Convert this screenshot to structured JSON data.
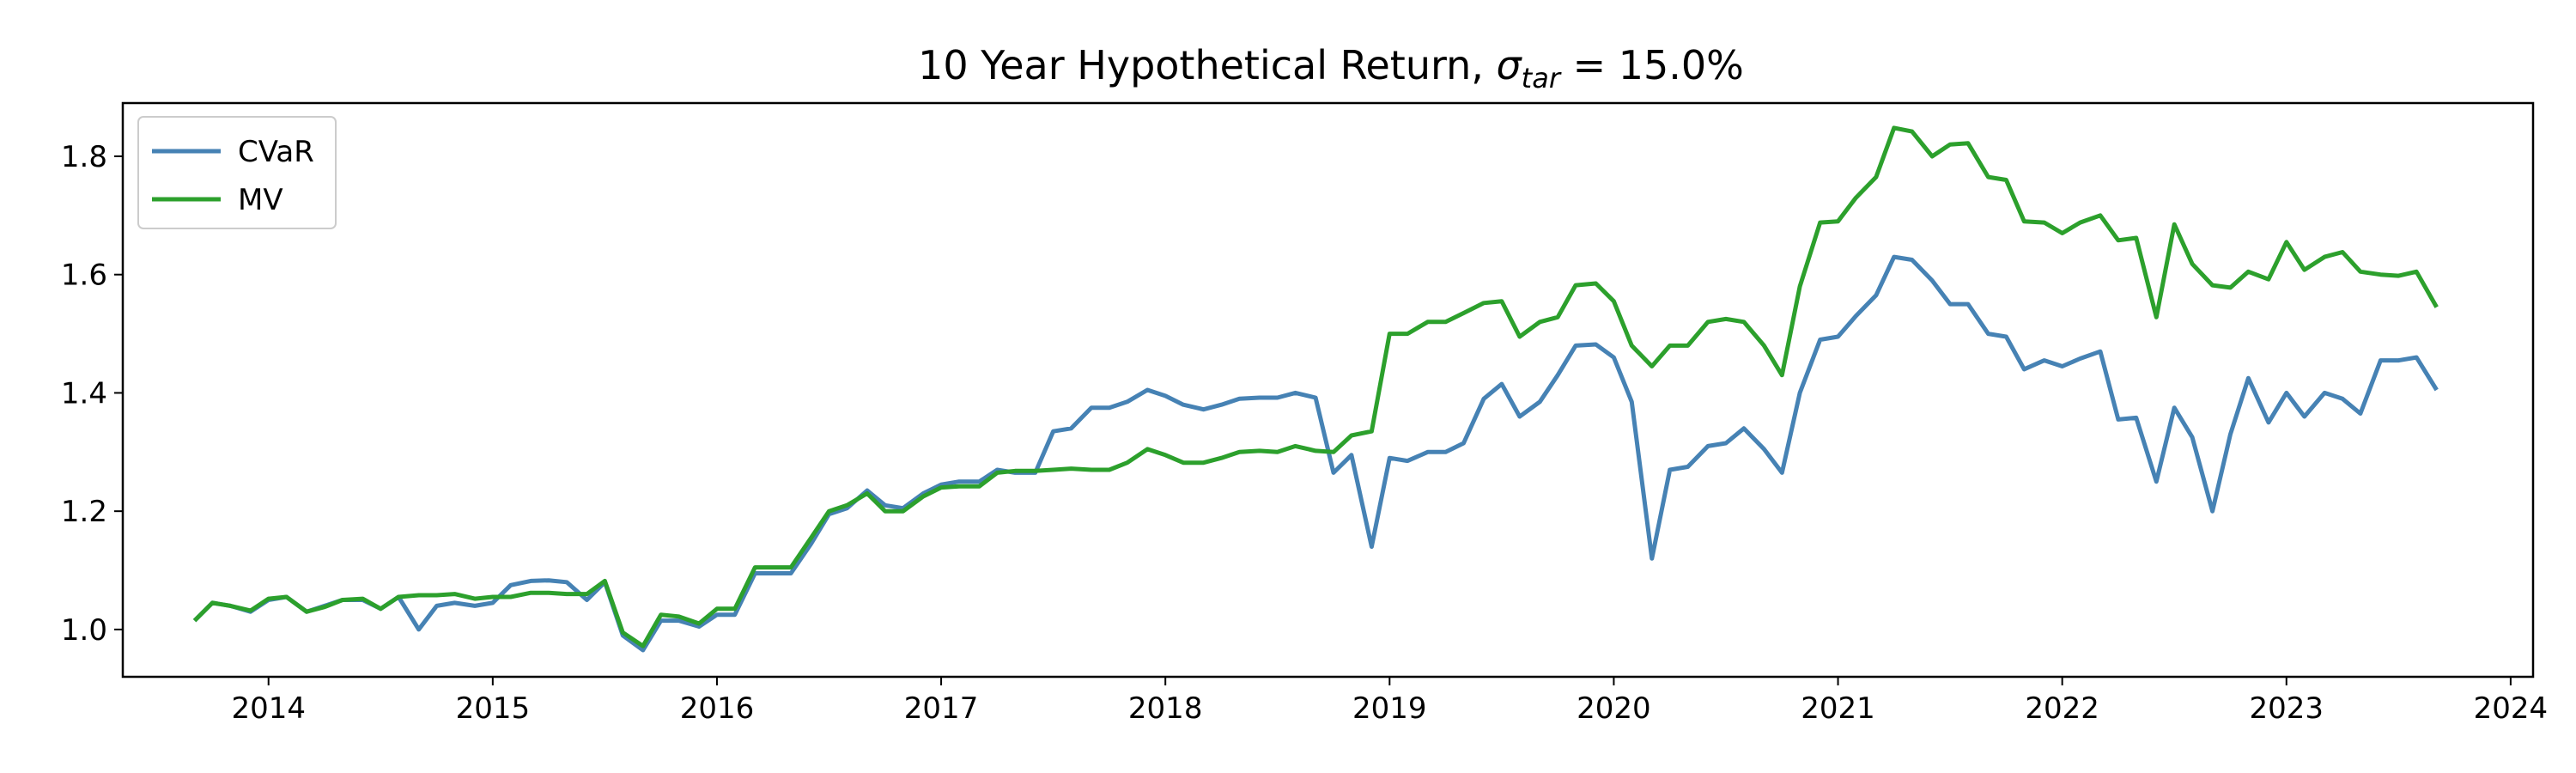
{
  "chart_data": {
    "type": "line",
    "title": {
      "prefix": "10 Year Hypothetical Return, ",
      "sigma": "σ",
      "subscript": "tar",
      "suffix": " = 15.0%"
    },
    "xlabel": "",
    "ylabel": "",
    "xlim": [
      2013.35,
      2024.1
    ],
    "ylim": [
      0.92,
      1.89
    ],
    "x_ticks": [
      "2014",
      "2015",
      "2016",
      "2017",
      "2018",
      "2019",
      "2020",
      "2021",
      "2022",
      "2023",
      "2024"
    ],
    "y_ticks": [
      "1.0",
      "1.2",
      "1.4",
      "1.6",
      "1.8"
    ],
    "grid": false,
    "legend": {
      "position": "top-left"
    },
    "x": [
      2013.67,
      2013.75,
      2013.83,
      2013.92,
      2014.0,
      2014.08,
      2014.17,
      2014.25,
      2014.33,
      2014.42,
      2014.5,
      2014.58,
      2014.67,
      2014.75,
      2014.83,
      2014.92,
      2015.0,
      2015.08,
      2015.17,
      2015.25,
      2015.33,
      2015.42,
      2015.5,
      2015.58,
      2015.67,
      2015.75,
      2015.83,
      2015.92,
      2016.0,
      2016.08,
      2016.17,
      2016.25,
      2016.33,
      2016.42,
      2016.5,
      2016.58,
      2016.67,
      2016.75,
      2016.83,
      2016.92,
      2017.0,
      2017.08,
      2017.17,
      2017.25,
      2017.33,
      2017.42,
      2017.5,
      2017.58,
      2017.67,
      2017.75,
      2017.83,
      2017.92,
      2018.0,
      2018.08,
      2018.17,
      2018.25,
      2018.33,
      2018.42,
      2018.5,
      2018.58,
      2018.67,
      2018.75,
      2018.83,
      2018.92,
      2019.0,
      2019.08,
      2019.17,
      2019.25,
      2019.33,
      2019.42,
      2019.5,
      2019.58,
      2019.67,
      2019.75,
      2019.83,
      2019.92,
      2020.0,
      2020.08,
      2020.17,
      2020.25,
      2020.33,
      2020.42,
      2020.5,
      2020.58,
      2020.67,
      2020.75,
      2020.83,
      2020.92,
      2021.0,
      2021.08,
      2021.17,
      2021.25,
      2021.33,
      2021.42,
      2021.5,
      2021.58,
      2021.67,
      2021.75,
      2021.83,
      2021.92,
      2022.0,
      2022.08,
      2022.17,
      2022.25,
      2022.33,
      2022.42,
      2022.5,
      2022.58,
      2022.67,
      2022.75,
      2022.83,
      2022.92,
      2023.0,
      2023.08,
      2023.17,
      2023.25,
      2023.33,
      2023.42,
      2023.5,
      2023.58,
      2023.67
    ],
    "series": [
      {
        "name": "CVaR",
        "color": "#4682b4",
        "values": [
          1.015,
          1.045,
          1.04,
          1.03,
          1.05,
          1.055,
          1.03,
          1.04,
          1.05,
          1.05,
          1.035,
          1.055,
          1.0,
          1.04,
          1.045,
          1.04,
          1.045,
          1.075,
          1.082,
          1.083,
          1.08,
          1.05,
          1.08,
          0.99,
          0.965,
          1.015,
          1.015,
          1.005,
          1.025,
          1.025,
          1.095,
          1.095,
          1.095,
          1.145,
          1.195,
          1.205,
          1.235,
          1.21,
          1.205,
          1.23,
          1.245,
          1.25,
          1.25,
          1.27,
          1.265,
          1.265,
          1.335,
          1.34,
          1.375,
          1.375,
          1.385,
          1.405,
          1.395,
          1.38,
          1.372,
          1.38,
          1.39,
          1.392,
          1.392,
          1.4,
          1.392,
          1.265,
          1.295,
          1.14,
          1.29,
          1.285,
          1.3,
          1.3,
          1.315,
          1.39,
          1.415,
          1.36,
          1.385,
          1.43,
          1.48,
          1.482,
          1.46,
          1.385,
          1.12,
          1.27,
          1.275,
          1.31,
          1.315,
          1.34,
          1.305,
          1.265,
          1.4,
          1.49,
          1.495,
          1.53,
          1.565,
          1.63,
          1.625,
          1.59,
          1.55,
          1.55,
          1.5,
          1.495,
          1.44,
          1.455,
          1.445,
          1.458,
          1.47,
          1.355,
          1.358,
          1.25,
          1.375,
          1.325,
          1.2,
          1.33,
          1.425,
          1.35,
          1.4,
          1.36,
          1.4,
          1.39,
          1.365,
          1.455,
          1.455,
          1.46,
          1.405
        ]
      },
      {
        "name": "MV",
        "color": "#2ca02c",
        "values": [
          1.015,
          1.045,
          1.04,
          1.032,
          1.052,
          1.055,
          1.03,
          1.038,
          1.05,
          1.052,
          1.035,
          1.055,
          1.058,
          1.058,
          1.06,
          1.052,
          1.055,
          1.055,
          1.062,
          1.062,
          1.06,
          1.06,
          1.082,
          0.995,
          0.972,
          1.025,
          1.022,
          1.01,
          1.035,
          1.035,
          1.105,
          1.105,
          1.105,
          1.155,
          1.2,
          1.21,
          1.23,
          1.2,
          1.2,
          1.225,
          1.24,
          1.242,
          1.242,
          1.265,
          1.268,
          1.268,
          1.27,
          1.272,
          1.27,
          1.27,
          1.282,
          1.305,
          1.295,
          1.282,
          1.282,
          1.29,
          1.3,
          1.302,
          1.3,
          1.31,
          1.302,
          1.3,
          1.328,
          1.335,
          1.5,
          1.5,
          1.52,
          1.52,
          1.535,
          1.552,
          1.555,
          1.495,
          1.52,
          1.528,
          1.582,
          1.585,
          1.555,
          1.48,
          1.445,
          1.48,
          1.48,
          1.52,
          1.525,
          1.52,
          1.48,
          1.43,
          1.58,
          1.688,
          1.69,
          1.73,
          1.765,
          1.848,
          1.842,
          1.8,
          1.82,
          1.822,
          1.765,
          1.76,
          1.69,
          1.688,
          1.67,
          1.688,
          1.7,
          1.658,
          1.662,
          1.528,
          1.685,
          1.618,
          1.582,
          1.578,
          1.605,
          1.592,
          1.655,
          1.608,
          1.63,
          1.638,
          1.605,
          1.6,
          1.598,
          1.605,
          1.545
        ]
      }
    ]
  }
}
